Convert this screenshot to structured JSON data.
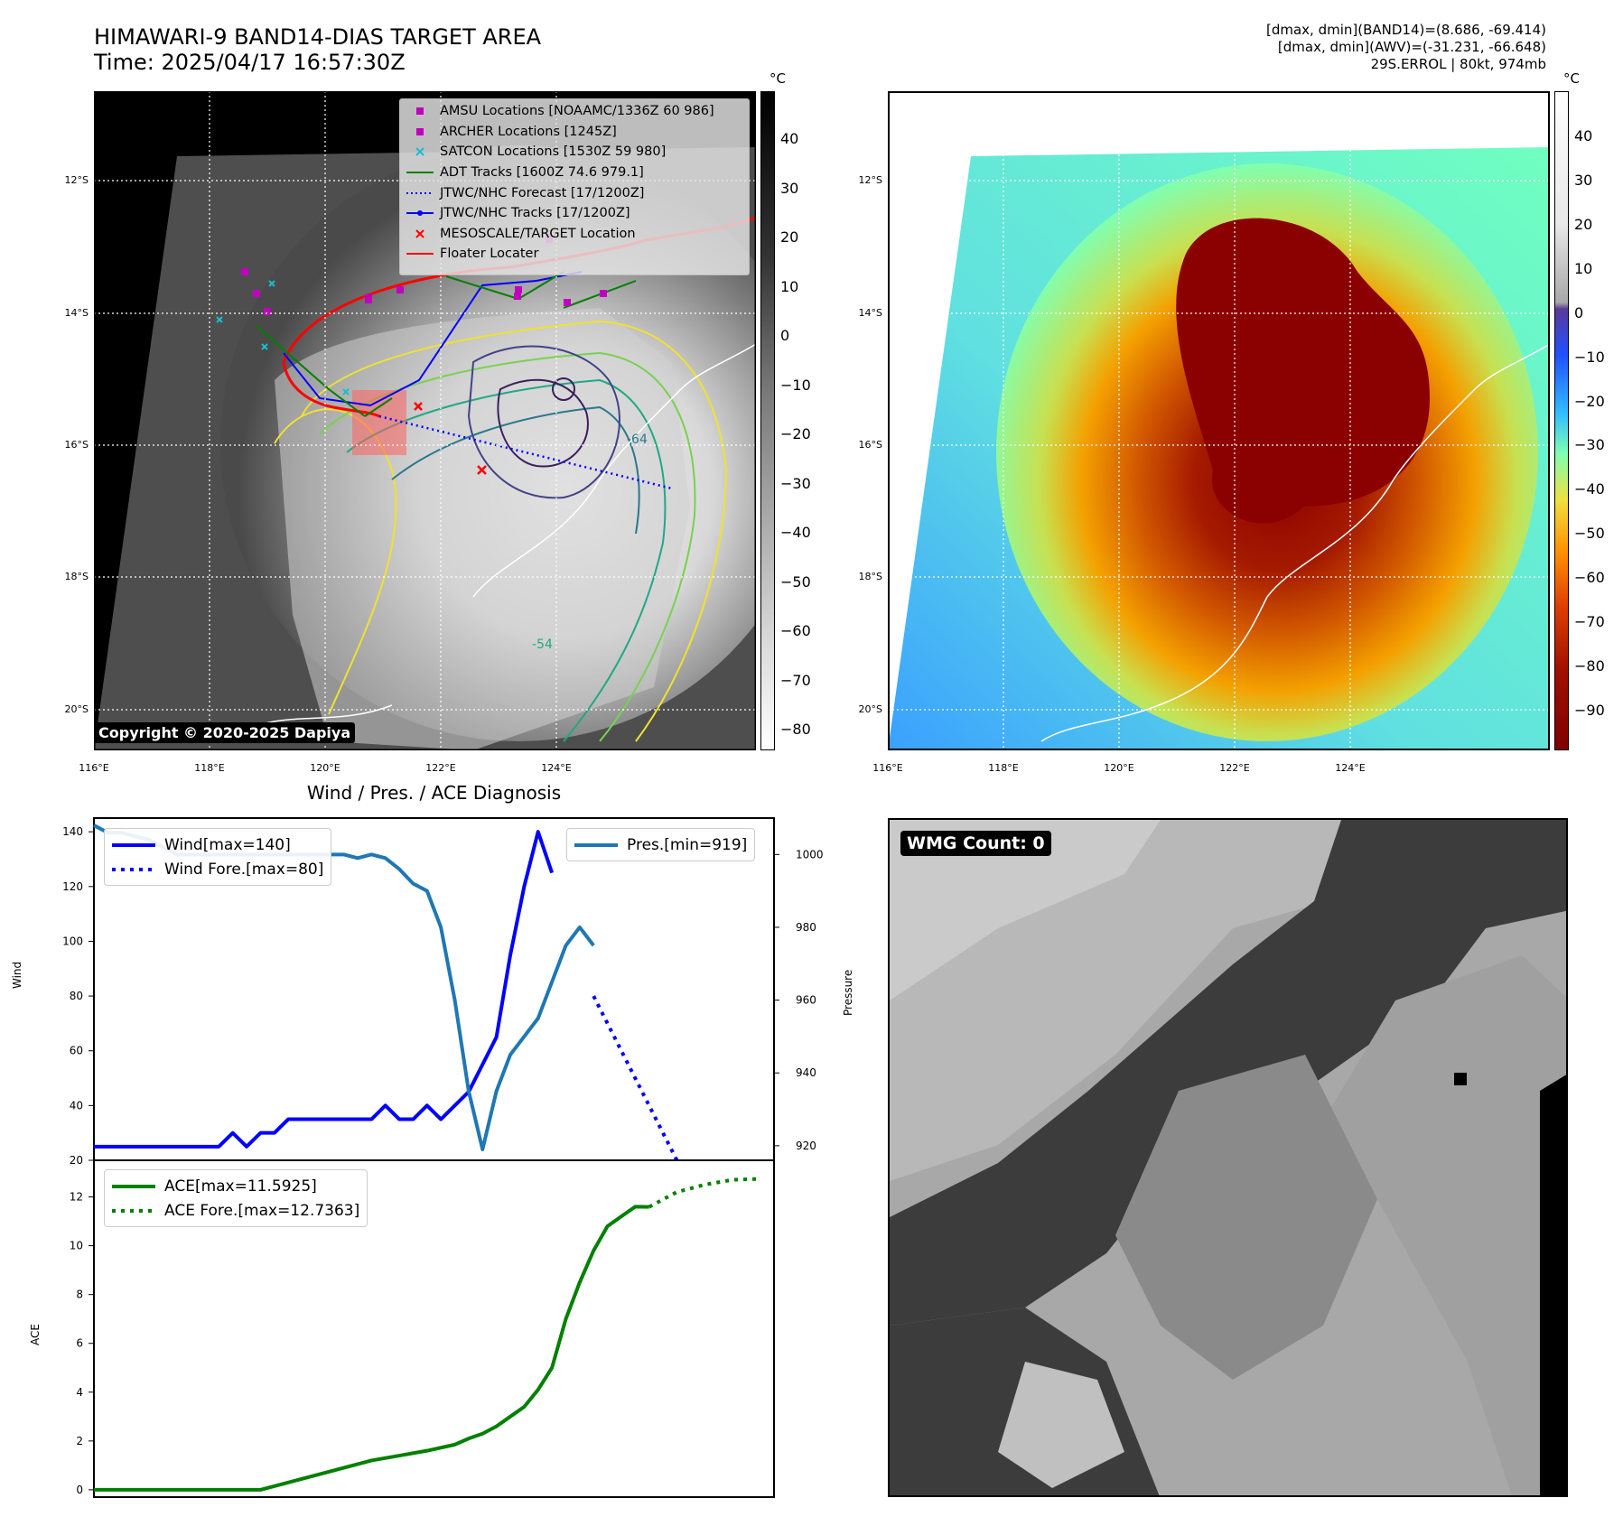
{
  "header": {
    "title_line1": "HIMAWARI-9 BAND14-DIAS TARGET AREA",
    "title_line2": "Time: 2025/04/17 16:57:30Z",
    "info_line1": "[dmax, dmin](BAND14)=(8.686, -69.414)",
    "info_line2": "[dmax, dmin](AWV)=(-31.231, -66.648)",
    "info_line3": "29S.ERROL | 80kt, 974mb"
  },
  "map_axes": {
    "lat_labels": [
      "12°S",
      "14°S",
      "16°S",
      "18°S",
      "20°S"
    ],
    "lon_labels": [
      "116°E",
      "118°E",
      "120°E",
      "122°E",
      "124°E"
    ]
  },
  "left_map": {
    "copyright": "Copyright © 2020-2025 Dapiya",
    "colorbar_unit": "°C",
    "colorbar_ticks": [
      "40",
      "30",
      "20",
      "10",
      "0",
      "−10",
      "−20",
      "−30",
      "−40",
      "−50",
      "−60",
      "−70",
      "−80"
    ],
    "contour_labels": [
      "-64",
      "-54"
    ],
    "legend": [
      {
        "label": "AMSU Locations [NOAAMC/1336Z 60 986]",
        "symbol": "square",
        "color": "#bf00bf"
      },
      {
        "label": "ARCHER Locations [1245Z]",
        "symbol": "square",
        "color": "#bf00bf"
      },
      {
        "label": "SATCON Locations [1530Z 59 980]",
        "symbol": "x",
        "color": "#17becf"
      },
      {
        "label": "ADT Tracks [1600Z 74.6 979.1]",
        "symbol": "line",
        "color": "#008000"
      },
      {
        "label": "JTWC/NHC Forecast [17/1200Z]",
        "symbol": "dotted",
        "color": "#0000ff"
      },
      {
        "label": "JTWC/NHC Tracks [17/1200Z]",
        "symbol": "line-dot",
        "color": "#0000ff"
      },
      {
        "label": "MESOSCALE/TARGET Location",
        "symbol": "x",
        "color": "#ff0000"
      },
      {
        "label": "Floater Locater",
        "symbol": "line",
        "color": "#ff0000"
      }
    ]
  },
  "right_map": {
    "colorbar_unit": "°C",
    "colorbar_ticks": [
      "40",
      "30",
      "20",
      "10",
      "0",
      "−10",
      "−20",
      "−30",
      "−40",
      "−50",
      "−60",
      "−70",
      "−80",
      "−90"
    ]
  },
  "wmg_panel": {
    "badge": "WMG Count: 0"
  },
  "chart_data": [
    {
      "type": "line",
      "title": "Wind / Pres. / ACE Diagnosis",
      "ylabel": "Wind",
      "y2label": "Pressure",
      "ylim": [
        20,
        145
      ],
      "y2lim": [
        916,
        1010
      ],
      "yticks": [
        "140",
        "120",
        "100",
        "80",
        "60",
        "40",
        "20"
      ],
      "y2ticks": [
        "1000",
        "980",
        "960",
        "940",
        "920"
      ],
      "series": [
        {
          "name": "Wind[max=140]",
          "color": "#0000ff",
          "style": "solid",
          "x": [
            0,
            3,
            6,
            9,
            10,
            11,
            12,
            13,
            14,
            15,
            16,
            17,
            18,
            19,
            20,
            21,
            22,
            23,
            24,
            25,
            26,
            27,
            28,
            29,
            30,
            31,
            32,
            33
          ],
          "values": [
            25,
            25,
            25,
            25,
            30,
            25,
            30,
            30,
            35,
            35,
            35,
            35,
            35,
            35,
            35,
            40,
            35,
            35,
            40,
            35,
            40,
            45,
            55,
            65,
            95,
            120,
            140,
            125
          ]
        },
        {
          "name": "Wind Fore.[max=80]",
          "color": "#0000ff",
          "style": "dotted",
          "x": [
            36,
            37,
            38,
            39,
            40,
            41,
            42
          ],
          "values": [
            80,
            70,
            60,
            50,
            40,
            30,
            20
          ]
        },
        {
          "name": "Pres.[min=919]",
          "color": "#1f77b4",
          "style": "solid",
          "axis": "right",
          "x": [
            0,
            1,
            2,
            3,
            4,
            5,
            6,
            7,
            8,
            9,
            10,
            11,
            12,
            13,
            14,
            15,
            16,
            17,
            18,
            19,
            20,
            21,
            22,
            23,
            24,
            25,
            26,
            27,
            28,
            29,
            30,
            31,
            32,
            33,
            34,
            35,
            36
          ],
          "values": [
            1008,
            1006,
            1006,
            1005,
            1004,
            1002,
            1000,
            1000,
            1000,
            1000,
            1000,
            1000,
            1000,
            1000,
            1000,
            1000,
            1000,
            1000,
            1000,
            999,
            1000,
            999,
            996,
            992,
            990,
            980,
            960,
            935,
            919,
            935,
            945,
            950,
            955,
            965,
            975,
            980,
            975
          ]
        }
      ]
    },
    {
      "type": "line",
      "ylabel": "ACE",
      "ylim": [
        -0.3,
        13.5
      ],
      "yticks": [
        "12",
        "10",
        "8",
        "6",
        "4",
        "2",
        "0"
      ],
      "series": [
        {
          "name": "ACE[max=11.5925]",
          "color": "#008000",
          "style": "solid",
          "x": [
            0,
            12,
            14,
            16,
            18,
            20,
            22,
            24,
            26,
            27,
            28,
            29,
            30,
            31,
            32,
            33,
            34,
            35,
            36,
            37,
            38,
            39,
            40
          ],
          "values": [
            0,
            0,
            0.3,
            0.6,
            0.9,
            1.2,
            1.4,
            1.6,
            1.85,
            2.1,
            2.3,
            2.6,
            3.0,
            3.4,
            4.1,
            5.0,
            7.0,
            8.5,
            9.8,
            10.8,
            11.2,
            11.6,
            11.59
          ]
        },
        {
          "name": "ACE Fore.[max=12.7363]",
          "color": "#008000",
          "style": "dotted",
          "x": [
            40,
            42,
            44,
            46,
            48
          ],
          "values": [
            11.59,
            12.2,
            12.5,
            12.7,
            12.74
          ]
        }
      ]
    }
  ]
}
